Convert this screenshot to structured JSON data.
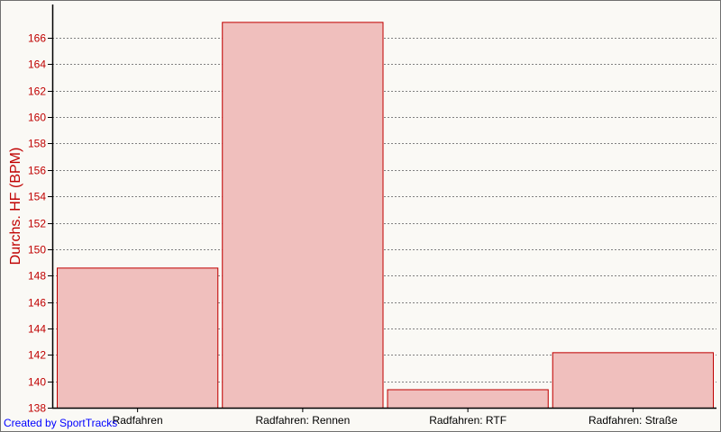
{
  "chart_data": {
    "type": "bar",
    "categories": [
      "Radfahren",
      "Radfahren: Rennen",
      "Radfahren: RTF",
      "Radfahren: Straße"
    ],
    "values": [
      148.6,
      167.2,
      139.4,
      142.2
    ],
    "title": "",
    "xlabel": "",
    "ylabel": "Durchs. HF (BPM)",
    "ylim": [
      138,
      168.5
    ],
    "yticks": [
      138,
      140,
      142,
      144,
      146,
      148,
      150,
      152,
      154,
      156,
      158,
      160,
      162,
      164,
      166
    ],
    "grid": "horizontal dotted",
    "colors": {
      "bar_fill": "#f0bfbd",
      "bar_edge": "#c00000",
      "axis_label": "#c00000",
      "background": "#faf9f5"
    }
  },
  "footer": {
    "credit": "Created by SportTracks"
  }
}
